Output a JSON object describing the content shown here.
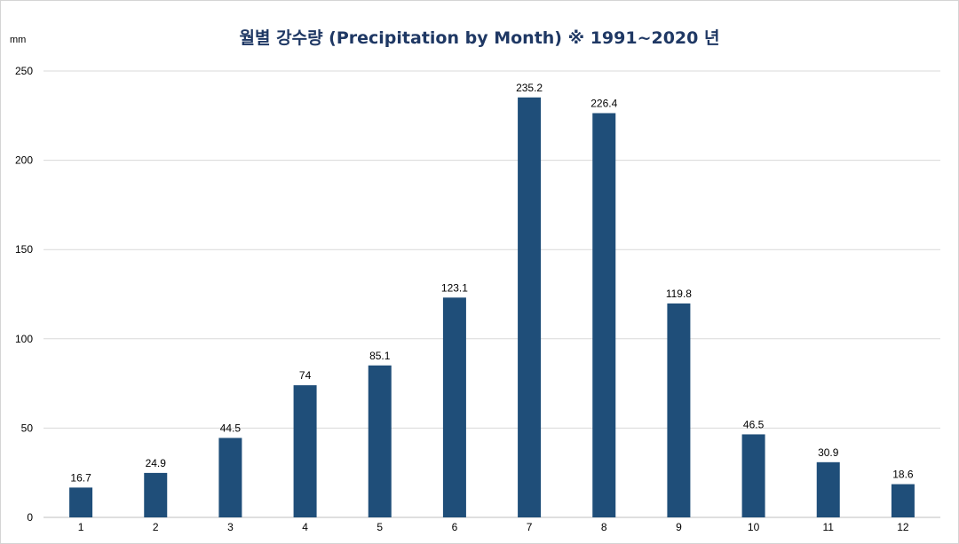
{
  "chart_data": {
    "type": "bar",
    "title": "월별 강수량  (Precipitation by Month)  ※ 1991~2020 년",
    "ylabel": "mm",
    "xlabel": "",
    "categories": [
      "1",
      "2",
      "3",
      "4",
      "5",
      "6",
      "7",
      "8",
      "9",
      "10",
      "11",
      "12"
    ],
    "values": [
      16.7,
      24.9,
      44.5,
      74,
      85.1,
      123.1,
      235.2,
      226.4,
      119.8,
      46.5,
      30.9,
      18.6
    ],
    "data_labels": [
      "16.7",
      "24.9",
      "44.5",
      "74",
      "85.1",
      "123.1",
      "235.2",
      "226.4",
      "119.8",
      "46.5",
      "30.9",
      "18.6"
    ],
    "ylim": [
      0,
      250
    ],
    "yticks": [
      "0",
      "50",
      "100",
      "150",
      "200",
      "250"
    ],
    "grid": true,
    "legend": "none",
    "bar_color": "#1f4e79"
  }
}
